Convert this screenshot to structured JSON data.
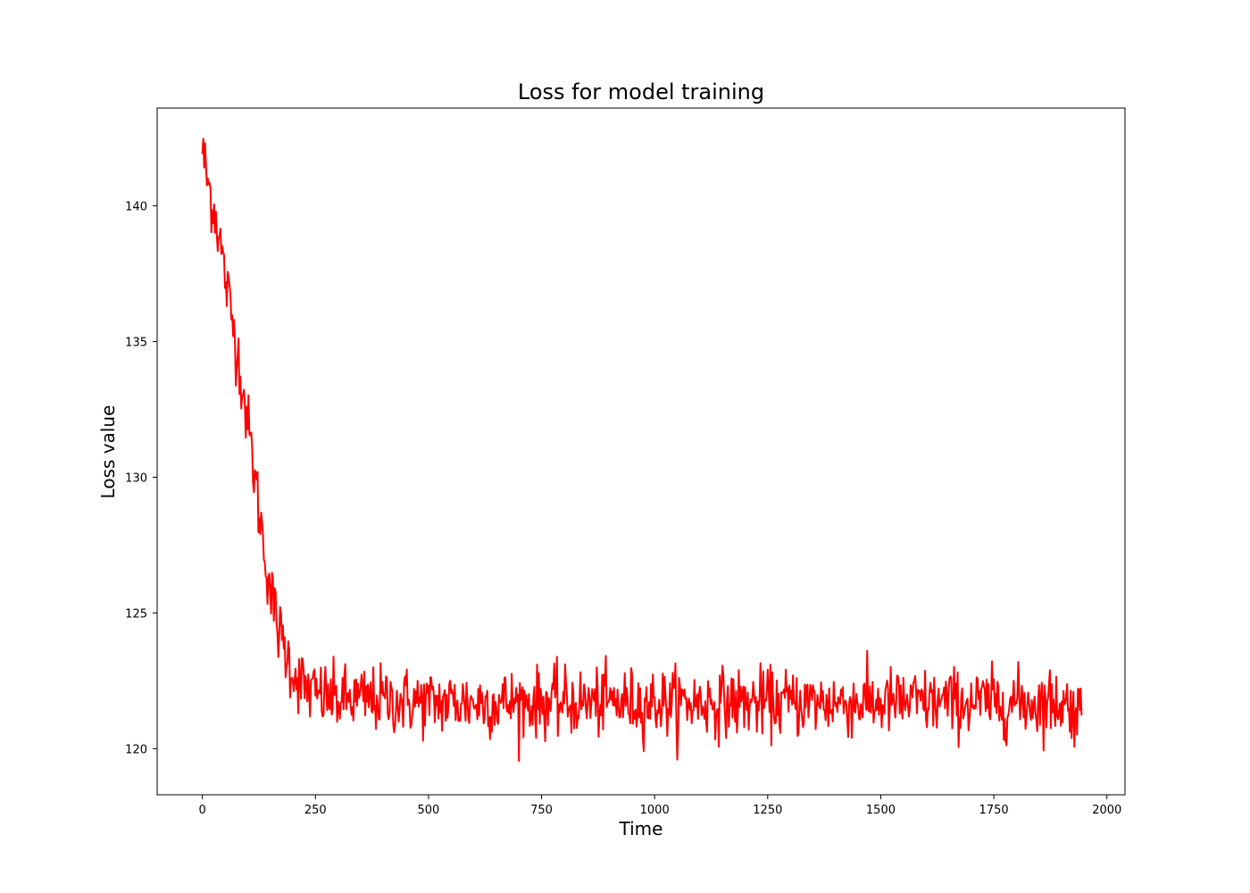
{
  "chart_data": {
    "type": "line",
    "title": "Loss for model training",
    "xlabel": "Time",
    "ylabel": "Loss value",
    "xlim": [
      -100,
      2040
    ],
    "ylim": [
      118.3,
      143.6
    ],
    "xticks": [
      0,
      250,
      500,
      750,
      1000,
      1250,
      1500,
      1750,
      2000
    ],
    "yticks": [
      120,
      125,
      130,
      135,
      140
    ],
    "grid": false,
    "legend": "none",
    "series": [
      {
        "color": "#ff0000",
        "x": [
          0,
          10,
          20,
          30,
          40,
          50,
          60,
          70,
          80,
          90,
          100,
          110,
          120,
          130,
          140,
          150,
          160,
          170,
          180,
          190,
          200,
          215,
          230,
          250,
          275,
          300,
          350,
          400,
          500,
          600,
          700,
          800,
          900,
          1000,
          1100,
          1200,
          1300,
          1400,
          1500,
          1600,
          1700,
          1800,
          1900,
          1945
        ],
        "y": [
          142.1,
          141.0,
          140.3,
          139.6,
          138.6,
          137.4,
          136.4,
          135.4,
          134.4,
          133.2,
          132.0,
          130.8,
          129.5,
          128.2,
          127.0,
          125.9,
          125.0,
          124.3,
          123.8,
          123.3,
          122.9,
          122.5,
          122.2,
          122.0,
          121.9,
          121.8,
          121.8,
          121.8,
          121.7,
          121.7,
          121.7,
          121.7,
          121.7,
          121.7,
          121.7,
          121.7,
          121.7,
          121.7,
          121.7,
          121.7,
          121.7,
          121.7,
          121.7,
          121.3
        ]
      }
    ]
  }
}
